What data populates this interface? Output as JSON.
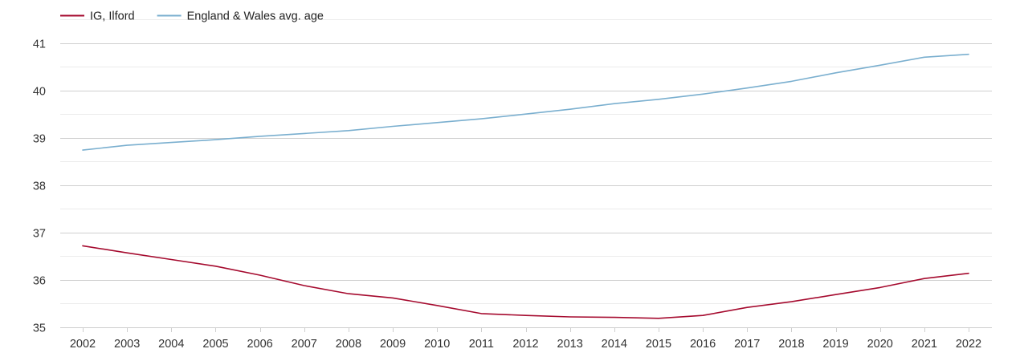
{
  "chart_data": {
    "type": "line",
    "title": "",
    "xlabel": "",
    "ylabel": "",
    "x": [
      2002,
      2003,
      2004,
      2005,
      2006,
      2007,
      2008,
      2009,
      2010,
      2011,
      2012,
      2013,
      2014,
      2015,
      2016,
      2017,
      2018,
      2019,
      2020,
      2021,
      2022
    ],
    "x_tick_labels": [
      "2002",
      "2003",
      "2004",
      "2005",
      "2006",
      "2007",
      "2008",
      "2009",
      "2010",
      "2011",
      "2012",
      "2013",
      "2014",
      "2015",
      "2016",
      "2017",
      "2018",
      "2019",
      "2020",
      "2021",
      "2022"
    ],
    "y_ticks": [
      35,
      36,
      37,
      38,
      39,
      40,
      41
    ],
    "y_tick_labels": [
      "35",
      "36",
      "37",
      "38",
      "39",
      "40",
      "41"
    ],
    "ylim": [
      35,
      41.5
    ],
    "grid": true,
    "legend_position": "top-left",
    "series": [
      {
        "name": "IG, Ilford",
        "color": "#a50a2e",
        "values": [
          36.72,
          36.57,
          36.43,
          36.29,
          36.1,
          35.88,
          35.71,
          35.62,
          35.46,
          35.29,
          35.25,
          35.22,
          35.21,
          35.19,
          35.25,
          35.42,
          35.54,
          35.69,
          35.84,
          36.03,
          36.14
        ]
      },
      {
        "name": "England & Wales avg. age",
        "color": "#7aafcf",
        "values": [
          38.74,
          38.84,
          38.9,
          38.96,
          39.03,
          39.09,
          39.15,
          39.24,
          39.32,
          39.4,
          39.5,
          39.6,
          39.72,
          39.81,
          39.92,
          40.05,
          40.19,
          40.37,
          40.53,
          40.7,
          40.76
        ]
      }
    ]
  }
}
